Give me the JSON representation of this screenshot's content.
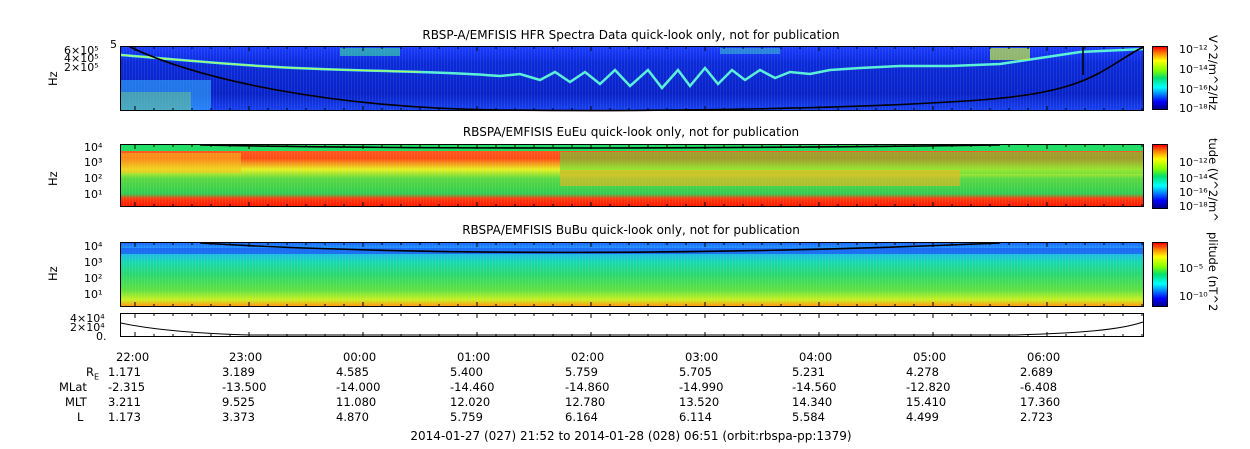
{
  "panels": [
    {
      "title": "RBSP-A/EMFISIS  HFR Spectra Data quick-look only, not for publication",
      "ylabel": "Hz",
      "yticks": [
        "5",
        "6×10⁵",
        "4×10⁵",
        "2×10⁵"
      ],
      "cbar_label": "V^2/m^2/Hz",
      "cbar_ticks": [
        "10⁻¹²",
        "10⁻¹⁴",
        "10⁻¹⁶",
        "10⁻¹⁸"
      ]
    },
    {
      "title": "RBSPA/EMFISIS  EuEu quick-look only, not for publication",
      "ylabel": "Hz",
      "yticks": [
        "10⁴",
        "10³",
        "10²",
        "10¹"
      ],
      "cbar_label": "tude (V^2/m^",
      "cbar_ticks": [
        "10⁻¹²",
        "10⁻¹⁴",
        "10⁻¹⁶",
        "10⁻¹⁸"
      ]
    },
    {
      "title": "RBSPA/EMFISIS  BuBu quick-look only, not for publication",
      "ylabel": "Hz",
      "yticks": [
        "10⁴",
        "10³",
        "10²",
        "10¹"
      ],
      "cbar_label": "plitude (nT^2",
      "cbar_ticks": [
        "10⁻⁵",
        "10⁻¹⁰"
      ]
    },
    {
      "title": "",
      "ylabel": "",
      "yticks": [
        "4×10⁴",
        "2×10⁴",
        "0."
      ],
      "cbar_label": "",
      "cbar_ticks": []
    }
  ],
  "time_axis": {
    "labels": [
      "22:00",
      "23:00",
      "00:00",
      "01:00",
      "02:00",
      "03:00",
      "04:00",
      "05:00",
      "06:00"
    ]
  },
  "ephemeris": {
    "rows": [
      {
        "name": "R",
        "sub": "E",
        "values": [
          "1.171",
          "3.189",
          "4.585",
          "5.400",
          "5.759",
          "5.705",
          "5.231",
          "4.278",
          "2.689"
        ]
      },
      {
        "name": "MLat",
        "sub": "",
        "values": [
          "-2.315",
          "-13.500",
          "-14.000",
          "-14.460",
          "-14.860",
          "-14.990",
          "-14.560",
          "-12.820",
          "-6.408"
        ]
      },
      {
        "name": "MLT",
        "sub": "",
        "values": [
          "3.211",
          "9.525",
          "11.080",
          "12.020",
          "12.780",
          "13.520",
          "14.340",
          "15.410",
          "17.360"
        ]
      },
      {
        "name": "L",
        "sub": "",
        "values": [
          "1.173",
          "3.373",
          "4.870",
          "5.759",
          "6.164",
          "6.114",
          "5.584",
          "4.499",
          "2.723"
        ]
      }
    ]
  },
  "footer": "2014-01-27 (027) 21:52 to 2014-01-28 (028) 06:51 (orbit:rbspa-pp:1379)",
  "chart_data": [
    {
      "type": "heatmap",
      "title": "RBSP-A/EMFISIS  HFR Spectra Data quick-look only, not for publication",
      "ylabel": "Hz",
      "x": [
        "22:00",
        "23:00",
        "00:00",
        "01:00",
        "02:00",
        "03:00",
        "04:00",
        "05:00",
        "06:00"
      ],
      "colorbar": {
        "label": "V^2/m^2/Hz",
        "scale": "log",
        "range": [
          "1e-18",
          "1e-12"
        ]
      }
    },
    {
      "type": "heatmap",
      "title": "RBSPA/EMFISIS  EuEu quick-look only, not for publication",
      "ylabel": "Hz",
      "yscale": "log",
      "ylim": [
        1,
        10000
      ],
      "colorbar": {
        "label": "tude (V^2/m^",
        "scale": "log",
        "range": [
          "1e-18",
          "1e-12"
        ]
      }
    },
    {
      "type": "heatmap",
      "title": "RBSPA/EMFISIS  BuBu quick-look only, not for publication",
      "ylabel": "Hz",
      "yscale": "log",
      "ylim": [
        1,
        10000
      ],
      "colorbar": {
        "label": "plitude (nT^2",
        "scale": "log",
        "range": [
          "1e-10",
          "1e-5"
        ]
      }
    },
    {
      "type": "line",
      "ylim": [
        0,
        40000
      ]
    }
  ]
}
